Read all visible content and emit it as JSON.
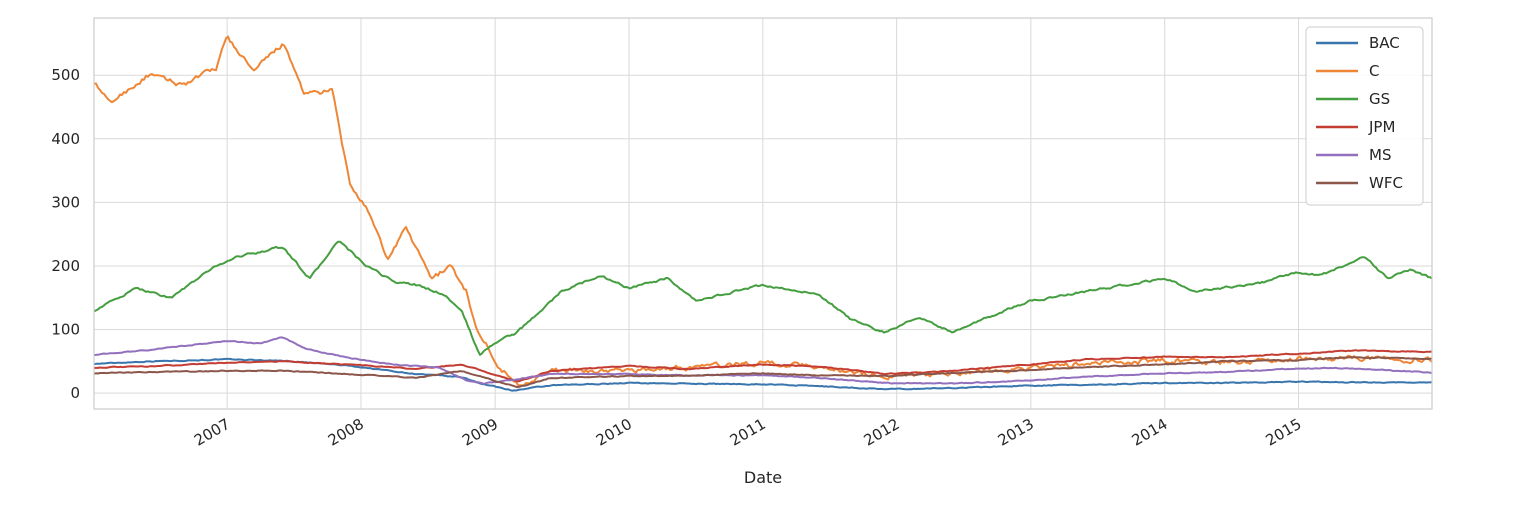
{
  "chart_data": {
    "type": "line",
    "title": "",
    "xlabel": "Date",
    "ylabel": "",
    "xlim": [
      "2006-01-03",
      "2015-12-31"
    ],
    "ylim": [
      -25,
      590
    ],
    "grid": true,
    "legend_position": "top-right",
    "x_ticks": [
      "2007",
      "2008",
      "2009",
      "2010",
      "2011",
      "2012",
      "2013",
      "2014",
      "2015"
    ],
    "y_ticks": [
      0,
      100,
      200,
      300,
      400,
      500
    ],
    "series": [
      {
        "name": "BAC",
        "color": "#3a76ae",
        "x": [
          "2006-01-03",
          "2006-06-01",
          "2007-01-01",
          "2007-06-01",
          "2007-12-01",
          "2008-06-01",
          "2008-10-01",
          "2008-12-01",
          "2009-02-20",
          "2009-06-01",
          "2010-01-01",
          "2010-06-01",
          "2011-01-01",
          "2011-06-01",
          "2011-12-01",
          "2012-06-01",
          "2013-01-01",
          "2013-06-01",
          "2014-01-01",
          "2014-06-01",
          "2015-01-01",
          "2015-06-01",
          "2015-12-31"
        ],
        "values": [
          46,
          50,
          53,
          51,
          43,
          30,
          25,
          14,
          4,
          12,
          16,
          15,
          14,
          11,
          6,
          8,
          12,
          13,
          16,
          16,
          18,
          17,
          17
        ]
      },
      {
        "name": "C",
        "color": "#ee8636",
        "x": [
          "2006-01-03",
          "2006-02-15",
          "2006-04-01",
          "2006-06-01",
          "2006-09-01",
          "2006-12-01",
          "2007-01-01",
          "2007-03-15",
          "2007-06-01",
          "2007-08-01",
          "2007-10-15",
          "2007-12-01",
          "2008-01-15",
          "2008-03-15",
          "2008-05-01",
          "2008-07-15",
          "2008-09-01",
          "2008-10-15",
          "2008-11-15",
          "2008-12-15",
          "2009-01-15",
          "2009-03-05",
          "2009-06-01",
          "2009-12-01",
          "2010-06-01",
          "2011-01-01",
          "2011-06-01",
          "2011-12-01",
          "2012-06-01",
          "2013-01-01",
          "2013-06-01",
          "2014-01-01",
          "2014-06-01",
          "2015-01-01",
          "2015-06-01",
          "2015-12-31"
        ],
        "values": [
          490,
          455,
          475,
          500,
          485,
          510,
          560,
          505,
          550,
          470,
          475,
          330,
          290,
          210,
          260,
          180,
          200,
          160,
          95,
          70,
          40,
          12,
          35,
          35,
          40,
          48,
          42,
          26,
          32,
          40,
          46,
          52,
          48,
          54,
          56,
          52
        ]
      },
      {
        "name": "GS",
        "color": "#459e3f",
        "x": [
          "2006-01-03",
          "2006-05-01",
          "2006-08-01",
          "2006-12-01",
          "2007-02-01",
          "2007-06-01",
          "2007-08-15",
          "2007-11-01",
          "2008-01-15",
          "2008-04-01",
          "2008-06-01",
          "2008-08-15",
          "2008-10-01",
          "2008-11-20",
          "2009-01-01",
          "2009-03-01",
          "2009-07-01",
          "2009-10-15",
          "2010-01-01",
          "2010-04-15",
          "2010-07-01",
          "2011-01-01",
          "2011-06-01",
          "2011-09-01",
          "2011-12-01",
          "2012-03-01",
          "2012-06-01",
          "2012-10-01",
          "2013-01-01",
          "2013-06-01",
          "2014-01-01",
          "2014-04-01",
          "2014-10-01",
          "2015-01-01",
          "2015-03-01",
          "2015-07-01",
          "2015-09-01",
          "2015-11-01",
          "2015-12-31"
        ],
        "values": [
          130,
          165,
          150,
          200,
          215,
          230,
          180,
          240,
          200,
          175,
          170,
          155,
          130,
          60,
          80,
          95,
          160,
          185,
          165,
          180,
          145,
          170,
          155,
          115,
          95,
          120,
          95,
          125,
          145,
          160,
          180,
          160,
          175,
          190,
          185,
          215,
          180,
          195,
          180
        ]
      },
      {
        "name": "JPM",
        "color": "#c43d33",
        "x": [
          "2006-01-03",
          "2006-06-01",
          "2007-01-01",
          "2007-06-01",
          "2007-12-01",
          "2008-06-01",
          "2008-10-01",
          "2009-03-05",
          "2009-06-01",
          "2010-01-01",
          "2010-06-01",
          "2011-01-01",
          "2011-06-01",
          "2011-12-01",
          "2012-06-01",
          "2013-01-01",
          "2013-06-01",
          "2014-01-01",
          "2014-06-01",
          "2015-01-01",
          "2015-06-01",
          "2015-12-31"
        ],
        "values": [
          40,
          42,
          48,
          50,
          45,
          38,
          45,
          18,
          35,
          43,
          38,
          45,
          42,
          30,
          35,
          45,
          53,
          57,
          56,
          62,
          67,
          65
        ]
      },
      {
        "name": "MS",
        "color": "#9370bd",
        "x": [
          "2006-01-03",
          "2006-06-01",
          "2007-01-01",
          "2007-04-01",
          "2007-06-01",
          "2007-08-01",
          "2007-12-01",
          "2008-04-01",
          "2008-08-01",
          "2008-10-15",
          "2008-12-01",
          "2009-03-01",
          "2009-06-01",
          "2010-01-01",
          "2010-06-01",
          "2011-01-01",
          "2011-06-01",
          "2011-12-01",
          "2012-06-01",
          "2013-01-01",
          "2013-06-01",
          "2014-01-01",
          "2014-06-01",
          "2015-01-01",
          "2015-06-01",
          "2015-12-31"
        ],
        "values": [
          60,
          68,
          82,
          78,
          88,
          70,
          55,
          45,
          40,
          20,
          15,
          22,
          30,
          30,
          28,
          28,
          24,
          16,
          15,
          20,
          26,
          31,
          33,
          39,
          39,
          32
        ]
      },
      {
        "name": "WFC",
        "color": "#8b574a",
        "x": [
          "2006-01-03",
          "2006-06-01",
          "2007-01-01",
          "2007-06-01",
          "2007-12-01",
          "2008-06-01",
          "2008-10-01",
          "2009-03-05",
          "2009-06-01",
          "2010-01-01",
          "2010-06-01",
          "2011-01-01",
          "2011-06-01",
          "2011-12-01",
          "2012-06-01",
          "2013-01-01",
          "2013-06-01",
          "2014-01-01",
          "2014-06-01",
          "2015-01-01",
          "2015-06-01",
          "2015-12-31"
        ],
        "values": [
          31,
          33,
          35,
          35,
          30,
          24,
          35,
          9,
          24,
          27,
          27,
          31,
          28,
          27,
          32,
          36,
          41,
          45,
          50,
          52,
          56,
          54
        ]
      }
    ]
  }
}
